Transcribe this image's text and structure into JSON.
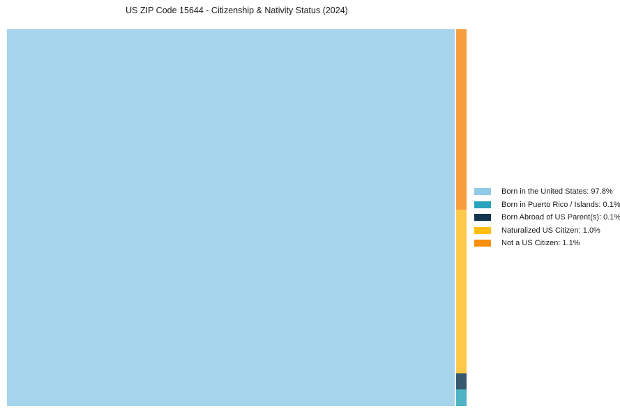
{
  "title": "US ZIP Code 15644 - Citizenship & Nativity Status (2024)",
  "chart_data": {
    "type": "treemap",
    "title": "US ZIP Code 15644 - Citizenship & Nativity Status (2024)",
    "categories": [
      "Born in the United States",
      "Born in Puerto Rico / Islands",
      "Born Abroad of US Parent(s)",
      "Naturalized US Citizen",
      "Not a US Citizen"
    ],
    "values": [
      97.8,
      0.1,
      0.1,
      1.0,
      1.1
    ],
    "units": "percent",
    "legend_position": "right",
    "layout": {
      "main_tile_category": "Born in the United States",
      "strip_order_top_to_bottom": [
        "Not a US Citizen",
        "Naturalized US Citizen",
        "Born Abroad of US Parent(s)",
        "Born in Puerto Rico / Islands"
      ]
    },
    "colors": {
      "Born in the United States": {
        "legend": "#8FCAE6",
        "tile": "#A6D4EB"
      },
      "Born in Puerto Rico / Islands": {
        "legend": "#2AA3BE",
        "tile": "#4FB2C5"
      },
      "Born Abroad of US Parent(s)": {
        "legend": "#12364F",
        "tile": "#36596E"
      },
      "Naturalized US Citizen": {
        "legend": "#FFBE10",
        "tile": "#FFC94C"
      },
      "Not a US Citizen": {
        "legend": "#F78F0E",
        "tile": "#F99E3E"
      }
    }
  },
  "legend": {
    "items": [
      {
        "label": "Born in the United States: 97.8%",
        "color": "#8FCAE6"
      },
      {
        "label": "Born in Puerto Rico / Islands: 0.1%",
        "color": "#2AA3BE"
      },
      {
        "label": "Born Abroad of US Parent(s): 0.1%",
        "color": "#12364F"
      },
      {
        "label": "Naturalized US Citizen: 1.0%",
        "color": "#FFBE10"
      },
      {
        "label": "Not a US Citizen: 1.1%",
        "color": "#F78F0E"
      }
    ]
  }
}
